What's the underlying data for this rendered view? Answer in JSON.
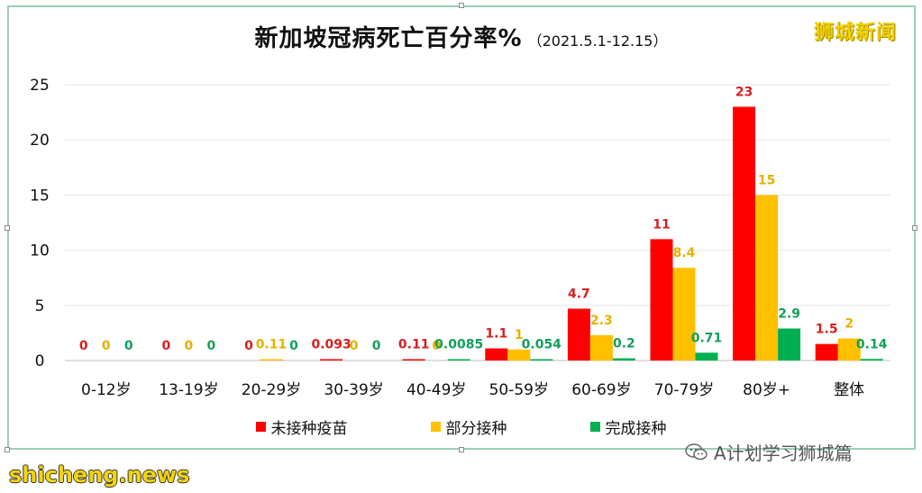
{
  "header": {
    "title": "新加坡冠病死亡百分率%",
    "subtitle": "（2021.5.1-12.15）",
    "brand": "狮城新闻"
  },
  "footer": {
    "watermark": "A计划学习狮城篇",
    "site": "shicheng.news"
  },
  "colors": {
    "unvaccinated": "#ff0000",
    "partial": "#ffc000",
    "full": "#00b050",
    "frame": "#9ccfb5",
    "grid": "#e6e6e6"
  },
  "chart_data": {
    "type": "bar",
    "categories": [
      "0-12岁",
      "13-19岁",
      "20-29岁",
      "30-39岁",
      "40-49岁",
      "50-59岁",
      "60-69岁",
      "70-79岁",
      "80岁+",
      "整体"
    ],
    "series": [
      {
        "name": "未接种疫苗",
        "values": [
          0,
          0,
          0,
          0.093,
          0.11,
          1.1,
          4.7,
          11,
          23,
          1.5
        ],
        "labels": [
          "0",
          "0",
          "0",
          "0.093",
          "0.11",
          "1.1",
          "4.7",
          "11",
          "23",
          "1.5"
        ]
      },
      {
        "name": "部分接种",
        "values": [
          0,
          0,
          0.11,
          0,
          0,
          1,
          2.3,
          8.4,
          15,
          2
        ],
        "labels": [
          "0",
          "0",
          "0.11",
          "0",
          "0",
          "1",
          "2.3",
          "8.4",
          "15",
          "2"
        ]
      },
      {
        "name": "完成接种",
        "values": [
          0,
          0,
          0,
          0,
          0.0085,
          0.054,
          0.2,
          0.71,
          2.9,
          0.14
        ],
        "labels": [
          "0",
          "0",
          "0",
          "0",
          "0.0085",
          "0.054",
          "0.2",
          "0.71",
          "2.9",
          "0.14"
        ]
      }
    ],
    "y_ticks": [
      "0",
      "5",
      "10",
      "15",
      "20",
      "25"
    ],
    "ylim": [
      0,
      25
    ],
    "grid": true,
    "legend_position": "bottom"
  }
}
